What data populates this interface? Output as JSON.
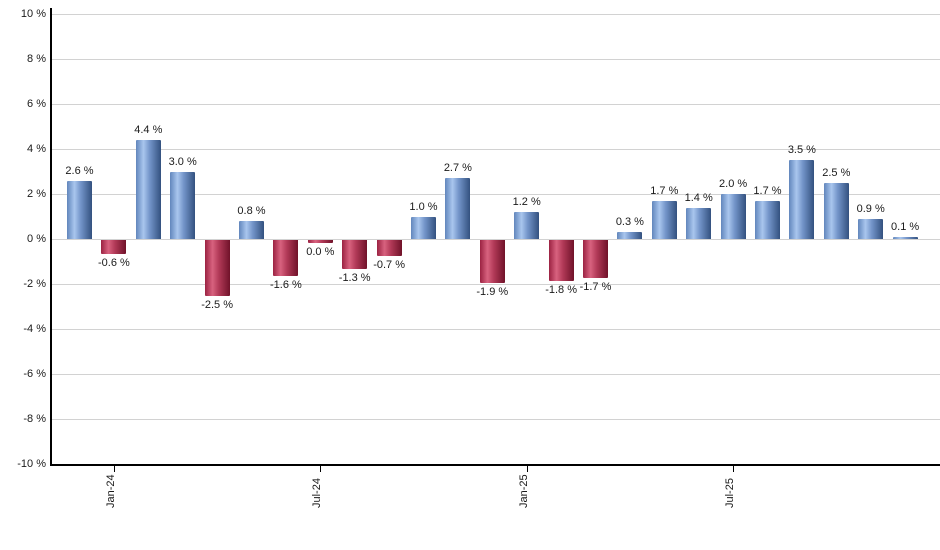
{
  "chart_data": {
    "type": "bar",
    "title": "",
    "unit": "%",
    "ylim": [
      -10,
      10
    ],
    "grid": true,
    "legend": null,
    "y_ticks": [
      {
        "value": 10,
        "label": "10 %"
      },
      {
        "value": 8,
        "label": "8 %"
      },
      {
        "value": 6,
        "label": "6 %"
      },
      {
        "value": 4,
        "label": "4 %"
      },
      {
        "value": 2,
        "label": "2 %"
      },
      {
        "value": 0,
        "label": "0 %"
      },
      {
        "value": -2,
        "label": "-2 %"
      },
      {
        "value": -4,
        "label": "-4 %"
      },
      {
        "value": -6,
        "label": "-6 %"
      },
      {
        "value": -8,
        "label": "-8 %"
      },
      {
        "value": -10,
        "label": "-10 %"
      }
    ],
    "x_ticks": [
      {
        "bar_index": 1,
        "label": "Jan-24"
      },
      {
        "bar_index": 7,
        "label": "Jul-24"
      },
      {
        "bar_index": 13,
        "label": "Jan-25"
      },
      {
        "bar_index": 19,
        "label": "Jul-25"
      }
    ],
    "bars": [
      {
        "value": 2.6,
        "label": "2.6 %",
        "color": "positive"
      },
      {
        "value": -0.6,
        "label": "-0.6 %",
        "color": "negative"
      },
      {
        "value": 4.4,
        "label": "4.4 %",
        "color": "positive"
      },
      {
        "value": 3.0,
        "label": "3.0 %",
        "color": "positive"
      },
      {
        "value": -2.5,
        "label": "-2.5 %",
        "color": "negative"
      },
      {
        "value": 0.8,
        "label": "0.8 %",
        "color": "positive"
      },
      {
        "value": -1.6,
        "label": "-1.6 %",
        "color": "negative"
      },
      {
        "value": 0.0,
        "label": "0.0 %",
        "color": "negative"
      },
      {
        "value": -1.3,
        "label": "-1.3 %",
        "color": "negative"
      },
      {
        "value": -0.7,
        "label": "-0.7 %",
        "color": "negative"
      },
      {
        "value": 1.0,
        "label": "1.0 %",
        "color": "positive"
      },
      {
        "value": 2.7,
        "label": "2.7 %",
        "color": "positive"
      },
      {
        "value": -1.9,
        "label": "-1.9 %",
        "color": "negative"
      },
      {
        "value": 1.2,
        "label": "1.2 %",
        "color": "positive"
      },
      {
        "value": -1.8,
        "label": "-1.8 %",
        "color": "negative"
      },
      {
        "value": -1.7,
        "label": "-1.7 %",
        "color": "negative"
      },
      {
        "value": 0.3,
        "label": "0.3 %",
        "color": "positive"
      },
      {
        "value": 1.7,
        "label": "1.7 %",
        "color": "positive"
      },
      {
        "value": 1.4,
        "label": "1.4 %",
        "color": "positive"
      },
      {
        "value": 2.0,
        "label": "2.0 %",
        "color": "positive"
      },
      {
        "value": 1.7,
        "label": "1.7 %",
        "color": "positive"
      },
      {
        "value": 3.5,
        "label": "3.5 %",
        "color": "positive"
      },
      {
        "value": 2.5,
        "label": "2.5 %",
        "color": "positive"
      },
      {
        "value": 0.9,
        "label": "0.9 %",
        "color": "positive"
      },
      {
        "value": 0.1,
        "label": "0.1 %",
        "color": "positive"
      }
    ],
    "colors": {
      "positive_gradient_stops": [
        "#6186bc",
        "#a9c6ee",
        "#7394c9",
        "#33517f"
      ],
      "negative_gradient_stops": [
        "#9b2242",
        "#d8627f",
        "#b23a58",
        "#701229"
      ],
      "gridline": "#d2d2d2",
      "axis": "#000000",
      "label_text": "#1a1a1a"
    }
  }
}
